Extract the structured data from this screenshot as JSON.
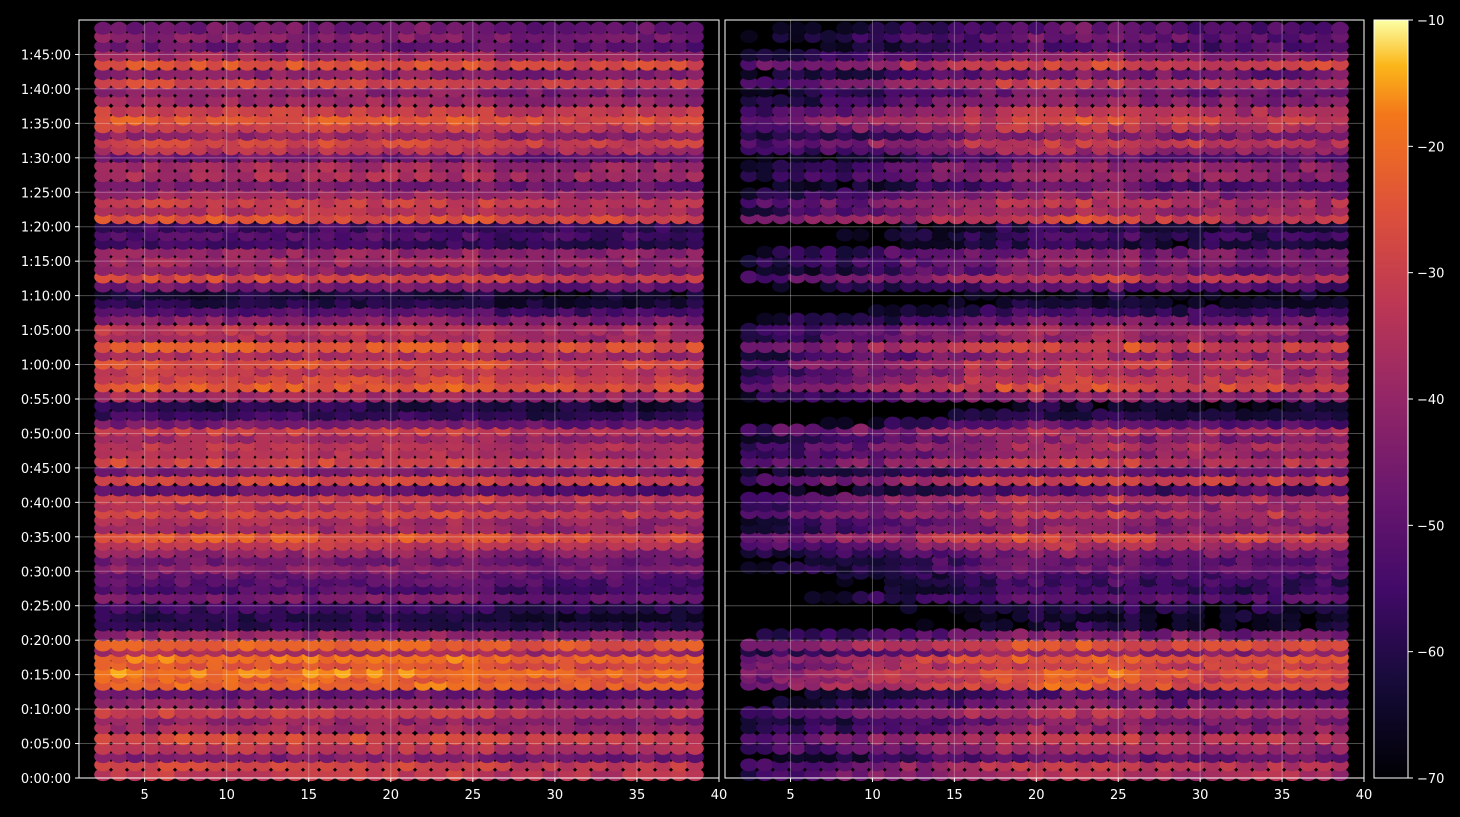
{
  "chart_data": {
    "type": "heatmap",
    "panels": 2,
    "title": "",
    "xlabel": "",
    "ylabel": "",
    "x_ticks": [
      5,
      10,
      15,
      20,
      25,
      30,
      35
    ],
    "x_end_tick": 40,
    "x_range": [
      1,
      40
    ],
    "y_tick_labels": [
      "0:00:00",
      "0:05:00",
      "0:10:00",
      "0:15:00",
      "0:20:00",
      "0:25:00",
      "0:30:00",
      "0:35:00",
      "0:40:00",
      "0:45:00",
      "0:50:00",
      "0:55:00",
      "1:00:00",
      "1:05:00",
      "1:10:00",
      "1:15:00",
      "1:20:00",
      "1:25:00",
      "1:30:00",
      "1:35:00",
      "1:40:00",
      "1:45:00"
    ],
    "y_range_minutes": [
      0,
      110
    ],
    "grid": true,
    "colormap": "inferno",
    "colorbar": {
      "ticks": [
        -10,
        -20,
        -30,
        -40,
        -50,
        -60,
        -70
      ],
      "range": [
        -70,
        -10
      ]
    },
    "row_time_minutes": [
      0.5,
      1.9,
      3.1,
      4.3,
      5.7,
      7.3,
      8.5,
      9.5,
      11.0,
      12.3,
      13.6,
      14.6,
      15.4,
      16.5,
      17.5,
      18.5,
      19.3,
      20.8,
      22.2,
      23.5,
      24.7,
      26.2,
      27.5,
      28.6,
      29.7,
      30.5,
      31.6,
      32.8,
      33.9,
      35.0,
      36.3,
      37.4,
      38.5,
      39.5,
      40.6,
      41.8,
      43.3,
      44.6,
      45.9,
      47.2,
      48.3,
      49.4,
      50.5,
      51.5,
      52.7,
      54.0,
      55.4,
      56.9,
      58.0,
      59.1,
      60.2,
      61.4,
      62.6,
      64.1,
      65.1,
      66.6,
      67.8,
      69.0,
      70.2,
      71.4,
      72.7,
      73.8,
      75.0,
      76.3,
      77.6,
      78.8,
      80.0,
      81.3,
      82.4,
      83.6,
      84.8,
      86.0,
      87.4,
      88.8,
      90.2,
      91.3,
      92.3,
      93.4,
      94.5,
      95.6,
      96.8,
      98.3,
      99.7,
      100.9,
      102.2,
      103.6,
      104.9,
      106.2,
      107.6,
      108.8
    ],
    "row_level_db": [
      -31,
      -28,
      -44,
      -33,
      -27,
      -38,
      -40,
      -30,
      -42,
      -48,
      -20,
      -22,
      -18,
      -24,
      -19,
      -36,
      -22,
      -40,
      -58,
      -60,
      -56,
      -45,
      -52,
      -50,
      -48,
      -42,
      -46,
      -40,
      -32,
      -24,
      -38,
      -37,
      -28,
      -36,
      -30,
      -49,
      -27,
      -44,
      -28,
      -35,
      -33,
      -38,
      -30,
      -46,
      -56,
      -60,
      -37,
      -23,
      -28,
      -32,
      -26,
      -36,
      -24,
      -36,
      -33,
      -42,
      -52,
      -60,
      -62,
      -46,
      -28,
      -42,
      -38,
      -40,
      -56,
      -52,
      -55,
      -25,
      -34,
      -30,
      -38,
      -46,
      -36,
      -37,
      -47,
      -34,
      -28,
      -40,
      -30,
      -24,
      -30,
      -38,
      -42,
      -28,
      -42,
      -25,
      -38,
      -48,
      -43,
      -46
    ]
  }
}
